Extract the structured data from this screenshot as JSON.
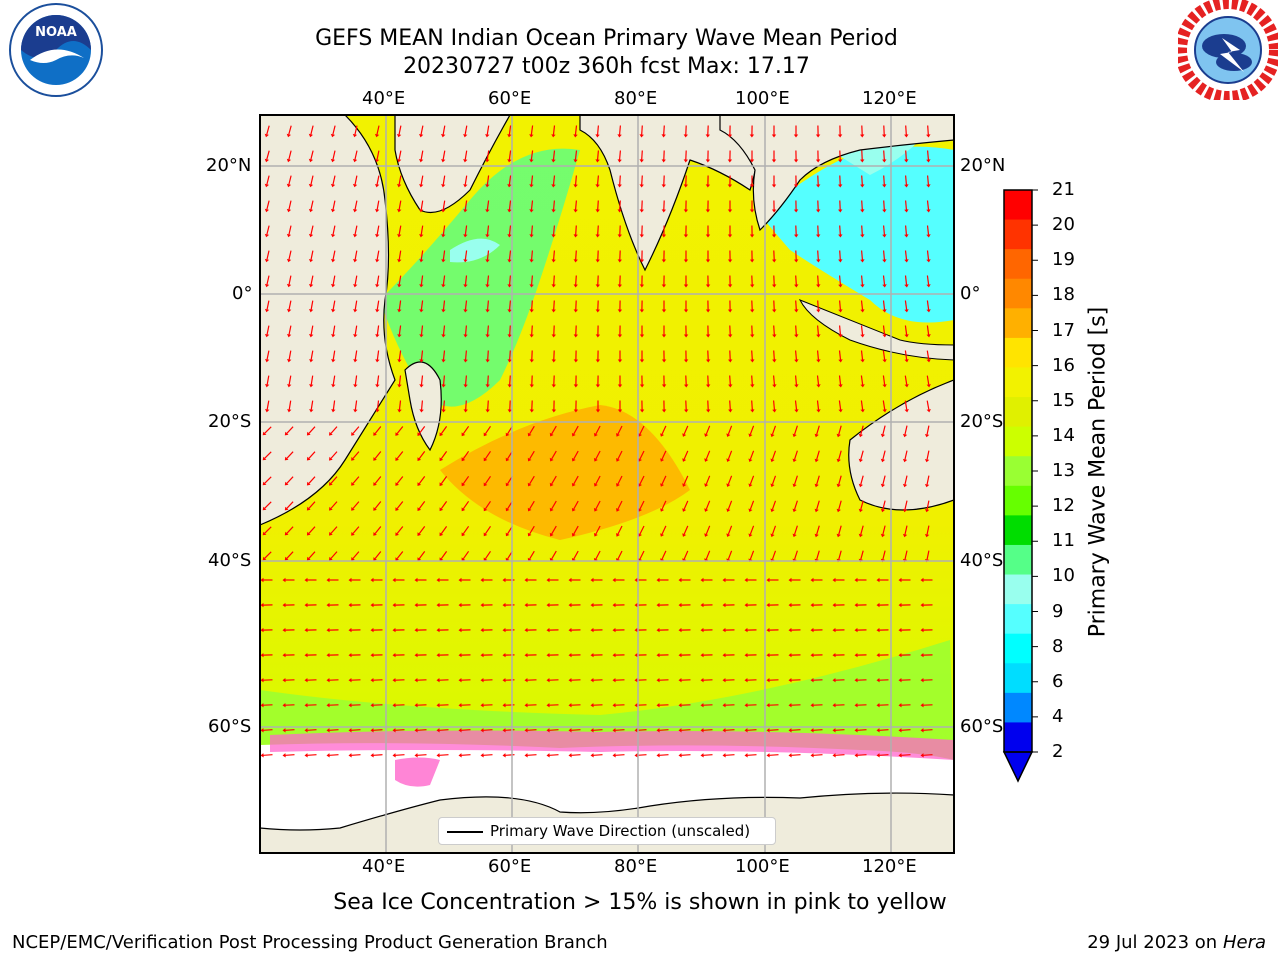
{
  "title": {
    "line1": "GEFS MEAN Indian Ocean Primary Wave Mean Period",
    "line2": "20230727 t00z 360h fcst   Max: 17.17"
  },
  "logos": {
    "noaa": {
      "text": "NOAA",
      "ring_text": "NATIONAL OCEANIC AND ATMOSPHERIC ADMINISTRATION · U.S. DEPARTMENT OF COMMERCE"
    },
    "nws": {
      "ring_text": "NATIONAL WEATHER SERVICE"
    }
  },
  "map": {
    "lon_ticks": [
      "40°E",
      "60°E",
      "80°E",
      "100°E",
      "120°E"
    ],
    "lat_ticks": [
      "20°N",
      "0°",
      "20°S",
      "40°S",
      "60°S"
    ],
    "legend_label": "Primary Wave Direction (unscaled)",
    "colors": {
      "land": "#efecdc",
      "sea_ice_region": "#ffffff",
      "arrow": "#ff0000",
      "grid": "#b0b0b0"
    }
  },
  "colorbar": {
    "label": "Primary Wave Mean Period [s]",
    "tick_labels": [
      "21",
      "20",
      "19",
      "18",
      "17",
      "16",
      "15",
      "14",
      "13",
      "12",
      "11",
      "10",
      "9",
      "8",
      "6",
      "4",
      "2"
    ],
    "colors": [
      "#ff0000",
      "#ff3300",
      "#ff6600",
      "#ff8800",
      "#ffb000",
      "#ffe400",
      "#f2f200",
      "#e0f000",
      "#ccff00",
      "#99ff33",
      "#66ff00",
      "#00dd00",
      "#55ff88",
      "#99ffee",
      "#55ffff",
      "#00ffff",
      "#00ddff",
      "#0088ff",
      "#0000ee"
    ]
  },
  "caption": "Sea Ice Concentration > 15% is shown in pink to yellow",
  "footer": {
    "left": "NCEP/EMC/Verification Post Processing Product Generation Branch",
    "date": "29 Jul 2023 on ",
    "machine": "Hera"
  }
}
